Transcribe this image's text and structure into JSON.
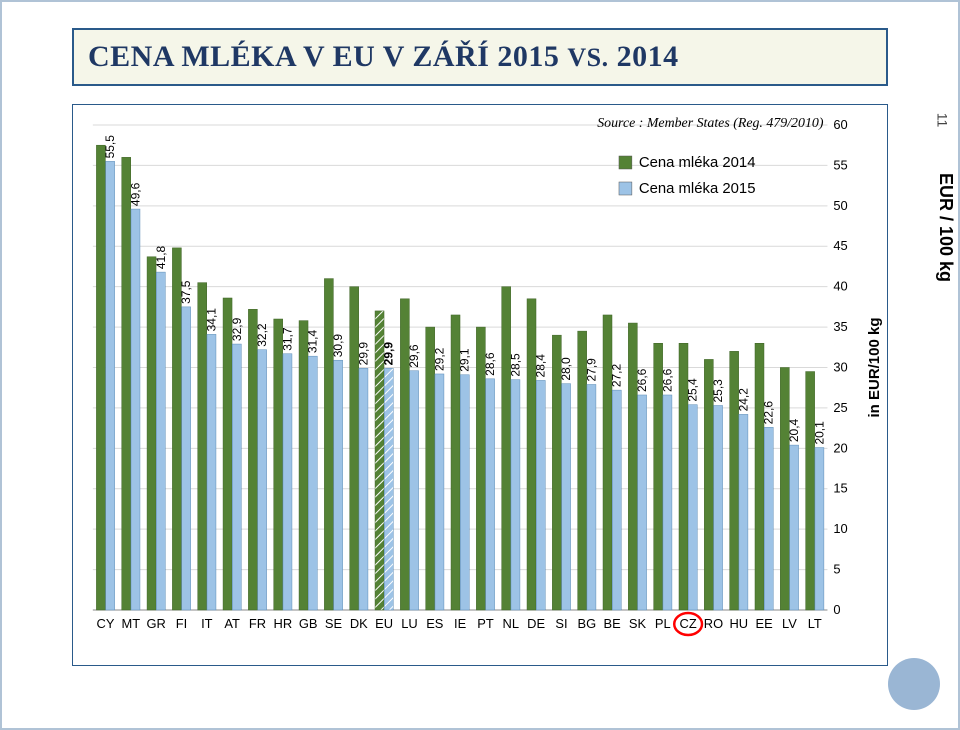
{
  "page_number": "11",
  "title_main": "CENA MLÉKA V EU V ZÁŘÍ 2015 ",
  "title_small": "VS.",
  "title_after": " 2014",
  "side_label": "EUR / 100 kg",
  "chart": {
    "type": "bar",
    "source_text": "Source : Member States (Reg. 479/2010)",
    "y_axis_title": "in EUR/100 kg",
    "ylim": [
      0,
      60
    ],
    "ytick_step": 5,
    "background_color": "#ffffff",
    "grid_color": "#d9d9d9",
    "color_2014": "#548235",
    "color_2015": "#9dc3e6",
    "highlight_category": "CZ",
    "highlight_color": "#ff0000",
    "hatch_category": "EU",
    "legend": [
      {
        "label": "Cena mléka 2014",
        "color": "#548235"
      },
      {
        "label": "Cena mléka 2015",
        "color": "#9dc3e6"
      }
    ],
    "categories": [
      "CY",
      "MT",
      "GR",
      "FI",
      "IT",
      "AT",
      "FR",
      "HR",
      "GB",
      "SE",
      "DK",
      "EU",
      "LU",
      "ES",
      "IE",
      "PT",
      "NL",
      "DE",
      "SI",
      "BG",
      "BE",
      "SK",
      "PL",
      "CZ",
      "RO",
      "HU",
      "EE",
      "LV",
      "LT"
    ],
    "values_2014": [
      57.5,
      56.0,
      43.7,
      44.8,
      40.5,
      38.6,
      37.2,
      36.0,
      35.8,
      41.0,
      40.0,
      37.0,
      38.5,
      35.0,
      36.5,
      35.0,
      40.0,
      38.5,
      34.0,
      34.5,
      36.5,
      35.5,
      33.0,
      33.0,
      31.0,
      32.0,
      33.0,
      30.0,
      29.5
    ],
    "values_2015": [
      55.5,
      49.6,
      41.8,
      37.5,
      34.1,
      32.9,
      32.2,
      31.7,
      31.4,
      30.9,
      29.9,
      29.9,
      29.6,
      29.2,
      29.1,
      28.6,
      28.5,
      28.4,
      28.0,
      27.9,
      27.2,
      26.6,
      26.6,
      25.4,
      25.3,
      24.2,
      22.6,
      20.4,
      20.1
    ],
    "label_fontsize": 12,
    "bar_group_width": 0.72,
    "bar_gap": 0.01
  }
}
